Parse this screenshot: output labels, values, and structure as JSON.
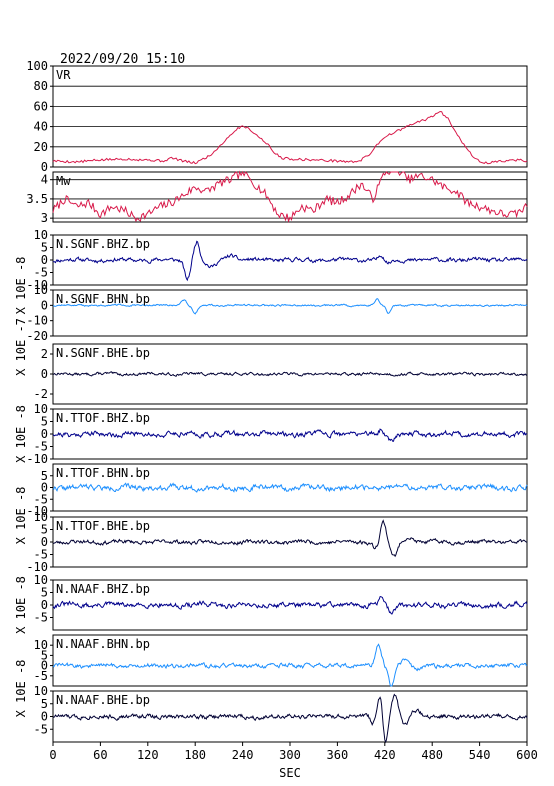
{
  "header": {
    "datetime": "2022/09/20  15:10"
  },
  "chart_data": {
    "type": "line",
    "x_axis": {
      "label": "SEC",
      "range": [
        0,
        600
      ],
      "ticks": [
        0,
        60,
        120,
        180,
        240,
        300,
        360,
        420,
        480,
        540,
        600
      ]
    },
    "colors": {
      "vr": "#d81a4a",
      "mw": "#d81a4a",
      "bhz": "#00008b",
      "bhn": "#1e90ff",
      "bhe": "#000033"
    },
    "panels": [
      {
        "id": "vr",
        "label": "VR",
        "ylim": [
          0,
          100
        ],
        "yticks": [
          0,
          20,
          40,
          60,
          80,
          100
        ],
        "grid": true,
        "color_key": "vr",
        "points": [
          [
            0,
            6
          ],
          [
            30,
            5
          ],
          [
            60,
            7
          ],
          [
            90,
            8
          ],
          [
            120,
            7
          ],
          [
            140,
            6
          ],
          [
            150,
            9
          ],
          [
            160,
            7
          ],
          [
            170,
            5
          ],
          [
            180,
            4
          ],
          [
            190,
            8
          ],
          [
            200,
            12
          ],
          [
            210,
            20
          ],
          [
            220,
            28
          ],
          [
            230,
            36
          ],
          [
            240,
            41
          ],
          [
            250,
            37
          ],
          [
            260,
            30
          ],
          [
            270,
            24
          ],
          [
            280,
            14
          ],
          [
            290,
            9
          ],
          [
            300,
            8
          ],
          [
            330,
            7
          ],
          [
            360,
            6
          ],
          [
            380,
            5
          ],
          [
            390,
            7
          ],
          [
            400,
            12
          ],
          [
            410,
            22
          ],
          [
            420,
            30
          ],
          [
            440,
            37
          ],
          [
            460,
            44
          ],
          [
            475,
            48
          ],
          [
            490,
            55
          ],
          [
            500,
            48
          ],
          [
            510,
            35
          ],
          [
            520,
            22
          ],
          [
            530,
            12
          ],
          [
            540,
            5
          ],
          [
            550,
            4
          ],
          [
            570,
            6
          ],
          [
            590,
            7
          ],
          [
            600,
            6
          ]
        ]
      },
      {
        "id": "mw",
        "label": "Mw",
        "ylim": [
          2.9,
          4.2
        ],
        "yticks": [
          3.0,
          3.5,
          4.0
        ],
        "grid": true,
        "color_key": "mw",
        "points": [
          [
            0,
            3.2
          ],
          [
            15,
            3.5
          ],
          [
            30,
            3.3
          ],
          [
            45,
            3.4
          ],
          [
            60,
            3.1
          ],
          [
            75,
            3.3
          ],
          [
            90,
            3.2
          ],
          [
            105,
            3.0
          ],
          [
            120,
            3.1
          ],
          [
            135,
            3.3
          ],
          [
            150,
            3.4
          ],
          [
            165,
            3.6
          ],
          [
            180,
            3.8
          ],
          [
            195,
            3.7
          ],
          [
            210,
            3.9
          ],
          [
            225,
            4.0
          ],
          [
            240,
            4.2
          ],
          [
            255,
            3.9
          ],
          [
            270,
            3.6
          ],
          [
            285,
            3.1
          ],
          [
            300,
            3.0
          ],
          [
            315,
            3.3
          ],
          [
            330,
            3.2
          ],
          [
            345,
            3.5
          ],
          [
            360,
            3.4
          ],
          [
            375,
            3.6
          ],
          [
            390,
            3.9
          ],
          [
            405,
            3.5
          ],
          [
            420,
            4.2
          ],
          [
            435,
            4.3
          ],
          [
            450,
            4.0
          ],
          [
            465,
            4.1
          ],
          [
            480,
            4.0
          ],
          [
            495,
            3.8
          ],
          [
            510,
            3.7
          ],
          [
            525,
            3.4
          ],
          [
            540,
            3.3
          ],
          [
            555,
            3.2
          ],
          [
            570,
            3.1
          ],
          [
            585,
            3.1
          ],
          [
            600,
            3.3
          ]
        ]
      },
      {
        "id": "sgnf_bhz",
        "label": "N.SGNF.BHZ.bp",
        "ylim": [
          -10,
          10
        ],
        "yticks": [
          -10,
          -5,
          0,
          5,
          10
        ],
        "color_key": "bhz",
        "noise": 0.7,
        "seed": 11,
        "events": [
          {
            "t": 170,
            "amp": -7.5,
            "w": 5
          },
          {
            "t": 182,
            "amp": 7.5,
            "w": 5
          },
          {
            "t": 200,
            "amp": -3,
            "w": 8
          },
          {
            "t": 225,
            "amp": 2,
            "w": 8
          },
          {
            "t": 415,
            "amp": 2,
            "w": 4
          },
          {
            "t": 425,
            "amp": -1.5,
            "w": 4
          }
        ]
      },
      {
        "id": "sgnf_bhn",
        "label": "N.SGNF.BHN.bp",
        "ylim": [
          -20,
          10
        ],
        "yticks": [
          -20,
          -10,
          0,
          10
        ],
        "color_key": "bhn",
        "noise": 0.5,
        "seed": 12,
        "events": [
          {
            "t": 165,
            "amp": 4,
            "w": 5
          },
          {
            "t": 180,
            "amp": -5,
            "w": 5
          },
          {
            "t": 410,
            "amp": 4,
            "w": 4
          },
          {
            "t": 425,
            "amp": -5,
            "w": 4
          }
        ]
      },
      {
        "id": "sgnf_bhe",
        "label": "N.SGNF.BHE.bp",
        "ylim": [
          -3,
          3
        ],
        "yticks": [
          -2,
          0,
          2
        ],
        "color_key": "bhe",
        "noise": 0.12,
        "seed": 13,
        "events": []
      },
      {
        "id": "ttof_bhz",
        "label": "N.TTOF.BHZ.bp",
        "ylim": [
          -10,
          10
        ],
        "yticks": [
          -10,
          -5,
          0,
          5,
          10
        ],
        "color_key": "bhz",
        "noise": 0.9,
        "seed": 21,
        "events": [
          {
            "t": 415,
            "amp": 2,
            "w": 4
          },
          {
            "t": 428,
            "amp": -2.5,
            "w": 5
          }
        ]
      },
      {
        "id": "ttof_bhn",
        "label": "N.TTOF.BHN.bp",
        "ylim": [
          -10,
          10
        ],
        "yticks": [
          -10,
          -5,
          0,
          5
        ],
        "color_key": "bhn",
        "noise": 1.0,
        "seed": 22,
        "events": []
      },
      {
        "id": "ttof_bhe",
        "label": "N.TTOF.BHE.bp",
        "ylim": [
          -10,
          10
        ],
        "yticks": [
          -10,
          -5,
          0,
          5,
          10
        ],
        "color_key": "bhe",
        "noise": 0.7,
        "seed": 23,
        "events": [
          {
            "t": 408,
            "amp": -2,
            "w": 5
          },
          {
            "t": 418,
            "amp": 8,
            "w": 5
          },
          {
            "t": 432,
            "amp": -6,
            "w": 6
          },
          {
            "t": 450,
            "amp": 2,
            "w": 8
          }
        ]
      },
      {
        "id": "naaf_bhz",
        "label": "N.NAAF.BHZ.bp",
        "ylim": [
          -10,
          10
        ],
        "yticks": [
          -5,
          0,
          5,
          10
        ],
        "color_key": "bhz",
        "noise": 0.9,
        "seed": 31,
        "events": [
          {
            "t": 415,
            "amp": 2.5,
            "w": 4
          },
          {
            "t": 428,
            "amp": -3,
            "w": 5
          }
        ]
      },
      {
        "id": "naaf_bhn",
        "label": "N.NAAF.BHN.bp",
        "ylim": [
          -10,
          15
        ],
        "yticks": [
          -5,
          0,
          5,
          10
        ],
        "color_key": "bhn",
        "noise": 0.9,
        "seed": 32,
        "events": [
          {
            "t": 412,
            "amp": 10,
            "w": 5
          },
          {
            "t": 428,
            "amp": -10,
            "w": 5
          },
          {
            "t": 445,
            "amp": 3,
            "w": 7
          },
          {
            "t": 460,
            "amp": -2,
            "w": 8
          }
        ]
      },
      {
        "id": "naaf_bhe",
        "label": "N.NAAF.BHE.bp",
        "ylim": [
          -10,
          10
        ],
        "yticks": [
          -5,
          0,
          5,
          10
        ],
        "color_key": "bhe",
        "noise": 0.8,
        "seed": 33,
        "events": [
          {
            "t": 405,
            "amp": -3,
            "w": 4
          },
          {
            "t": 414,
            "amp": 8,
            "w": 4
          },
          {
            "t": 421,
            "amp": -10,
            "w": 4
          },
          {
            "t": 433,
            "amp": 9,
            "w": 5
          },
          {
            "t": 446,
            "amp": -4,
            "w": 6
          },
          {
            "t": 460,
            "amp": 2,
            "w": 8
          }
        ]
      }
    ],
    "waveform_ylabels": [
      {
        "panels": [
          "sgnf_bhz",
          "sgnf_bhn"
        ],
        "text": "X 10E -8"
      },
      {
        "panels": [
          "sgnf_bhn",
          "sgnf_bhe"
        ],
        "text": "X 10E -7"
      },
      {
        "panels": [
          "ttof_bhz"
        ],
        "text": "X 10E -8"
      },
      {
        "panels": [
          "ttof_bhn",
          "ttof_bhe"
        ],
        "text": "X 10E -8"
      },
      {
        "panels": [
          "naaf_bhz"
        ],
        "text": "X 10E -8"
      },
      {
        "panels": [
          "naaf_bhn",
          "naaf_bhe"
        ],
        "text": "X 10E -8"
      }
    ]
  }
}
